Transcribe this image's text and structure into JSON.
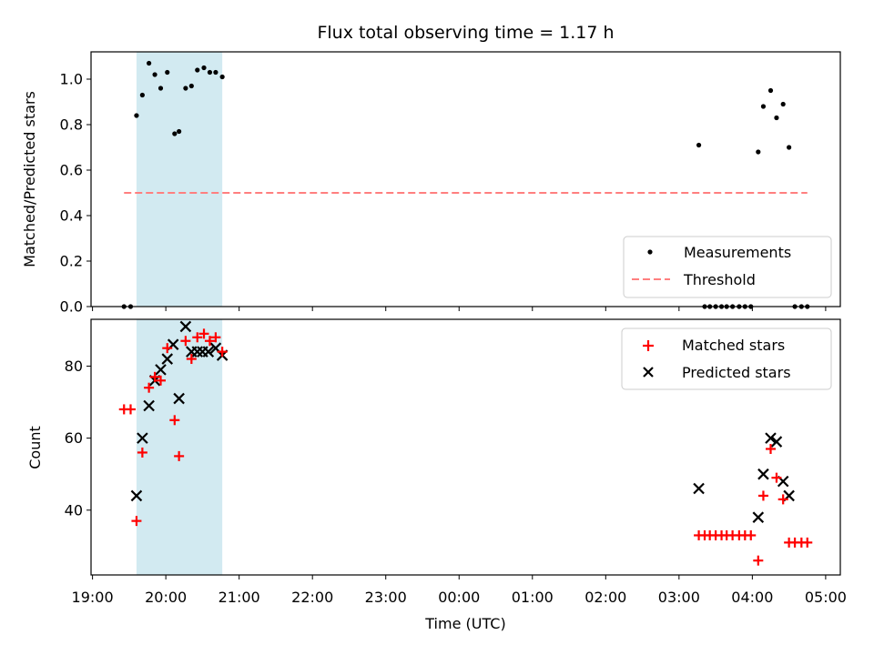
{
  "title": "Flux total observing time = 1.17 h",
  "xaxis": {
    "label": "Time (UTC)",
    "ticks": [
      "19:00",
      "20:00",
      "21:00",
      "22:00",
      "23:00",
      "00:00",
      "01:00",
      "02:00",
      "03:00",
      "04:00",
      "05:00"
    ],
    "tick_hours": [
      19,
      20,
      21,
      22,
      23,
      24,
      25,
      26,
      27,
      28,
      29
    ],
    "range_hours": [
      18.98,
      29.2
    ]
  },
  "chart_data": [
    {
      "type": "scatter",
      "name": "top-panel",
      "ylabel": "Matched/Predicted stars",
      "ylim": [
        0.0,
        1.12
      ],
      "yticks": [
        0.0,
        0.2,
        0.4,
        0.6,
        0.8,
        1.0
      ],
      "ytick_labels": [
        "0.0",
        "0.2",
        "0.4",
        "0.6",
        "0.8",
        "1.0"
      ],
      "shaded_region_hours": [
        19.6,
        20.77
      ],
      "shaded_color": "#add8e6",
      "legend_position": "lower right",
      "series": [
        {
          "name": "Measurements",
          "marker": "dot",
          "color": "#000000",
          "x_hours": [
            19.43,
            19.52,
            19.6,
            19.68,
            19.77,
            19.85,
            19.93,
            20.02,
            20.12,
            20.18,
            20.27,
            20.35,
            20.43,
            20.52,
            20.6,
            20.68,
            20.77,
            27.27,
            27.35,
            27.42,
            27.5,
            27.58,
            27.65,
            27.73,
            27.82,
            27.9,
            27.98,
            28.08,
            28.15,
            28.25,
            28.33,
            28.42,
            28.5,
            28.58,
            28.67,
            28.75
          ],
          "y": [
            0.0,
            0.0,
            0.84,
            0.93,
            1.07,
            1.02,
            0.96,
            1.03,
            0.76,
            0.77,
            0.96,
            0.97,
            1.04,
            1.05,
            1.03,
            1.03,
            1.01,
            0.71,
            0.0,
            0.0,
            0.0,
            0.0,
            0.0,
            0.0,
            0.0,
            0.0,
            0.0,
            0.68,
            0.88,
            0.95,
            0.83,
            0.89,
            0.7,
            0.0,
            0.0,
            0.0
          ]
        },
        {
          "name": "Threshold",
          "line_style": "dashed",
          "color": "#ff7f7f",
          "x_hours": [
            19.43,
            28.75
          ],
          "y": [
            0.5,
            0.5
          ]
        }
      ]
    },
    {
      "type": "scatter",
      "name": "bottom-panel",
      "ylabel": "Count",
      "ylim": [
        22,
        93
      ],
      "yticks": [
        40,
        60,
        80
      ],
      "ytick_labels": [
        "40",
        "60",
        "80"
      ],
      "shaded_region_hours": [
        19.6,
        20.77
      ],
      "shaded_color": "#add8e6",
      "legend_position": "upper right",
      "series": [
        {
          "name": "Matched stars",
          "marker": "plus",
          "color": "#ff0000",
          "x_hours": [
            19.43,
            19.52,
            19.6,
            19.68,
            19.77,
            19.85,
            19.93,
            20.02,
            20.12,
            20.18,
            20.27,
            20.35,
            20.43,
            20.52,
            20.6,
            20.68,
            20.77,
            27.27,
            27.35,
            27.42,
            27.5,
            27.58,
            27.65,
            27.73,
            27.82,
            27.9,
            27.98,
            28.08,
            28.15,
            28.25,
            28.33,
            28.42,
            28.5,
            28.58,
            28.67,
            28.75
          ],
          "y": [
            68,
            68,
            37,
            56,
            74,
            77,
            76,
            85,
            65,
            55,
            87,
            82,
            88,
            89,
            87,
            88,
            84,
            33,
            33,
            33,
            33,
            33,
            33,
            33,
            33,
            33,
            33,
            26,
            44,
            57,
            49,
            43,
            31,
            31,
            31,
            31
          ]
        },
        {
          "name": "Predicted stars",
          "marker": "x",
          "color": "#000000",
          "x_hours": [
            19.6,
            19.68,
            19.77,
            19.85,
            19.93,
            20.02,
            20.1,
            20.18,
            20.27,
            20.35,
            20.43,
            20.5,
            20.58,
            20.68,
            20.77,
            27.27,
            28.08,
            28.15,
            28.25,
            28.33,
            28.42,
            28.5
          ],
          "y": [
            44,
            60,
            69,
            76,
            79,
            82,
            86,
            71,
            91,
            84,
            84,
            84,
            84,
            85,
            83,
            46,
            38,
            50,
            60,
            59,
            48,
            44
          ]
        }
      ]
    }
  ]
}
